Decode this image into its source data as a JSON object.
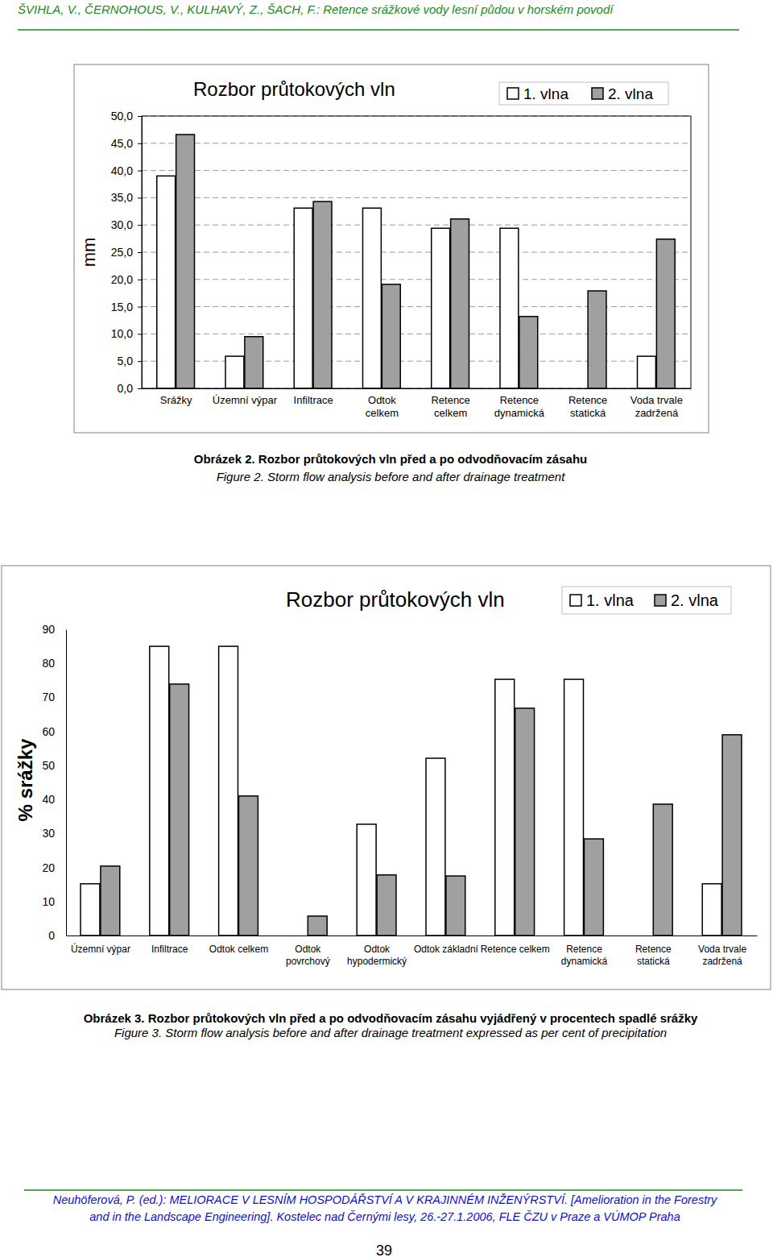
{
  "header": "ŠVIHLA, V., ČERNOHOUS, V., KULHAVÝ, Z., ŠACH, F.: Retence srážkové vody lesní půdou v horském povodí",
  "chart_data": [
    {
      "type": "bar",
      "title": "Rozbor průtokových vln",
      "y_label": "mm",
      "categories": [
        "Srážky",
        "Územní výpar",
        "Infiltrace",
        "Odtok\ncelkem",
        "Retence\ncelkem",
        "Retence\ndynamická",
        "Retence\nstatická",
        "Voda trvale\nzadržená"
      ],
      "series": [
        {
          "name": "1. vlna",
          "color": "#ffffff",
          "values": [
            39.0,
            5.9,
            33.1,
            33.1,
            29.4,
            29.4,
            null,
            5.9
          ]
        },
        {
          "name": "2. vlna",
          "color": "#a0a0a0",
          "values": [
            46.6,
            9.5,
            34.3,
            19.1,
            31.1,
            13.2,
            17.9,
            27.4
          ]
        }
      ],
      "ylim": [
        0,
        50
      ],
      "yticks": [
        {
          "value": 0,
          "label": "0,0"
        },
        {
          "value": 5,
          "label": "5,0"
        },
        {
          "value": 10,
          "label": "10,0"
        },
        {
          "value": 15,
          "label": "15,0"
        },
        {
          "value": 20,
          "label": "20,0"
        },
        {
          "value": 25,
          "label": "25,0"
        },
        {
          "value": 30,
          "label": "30,0"
        },
        {
          "value": 35,
          "label": "35,0"
        },
        {
          "value": 40,
          "label": "40,0"
        },
        {
          "value": 45,
          "label": "45,0"
        },
        {
          "value": 50,
          "label": "50,0"
        }
      ],
      "grid": true,
      "legend": "top-right"
    },
    {
      "type": "bar",
      "title": "Rozbor průtokových vln",
      "y_label": "% srážky",
      "categories": [
        "Územní výpar",
        "Infiltrace",
        "Odtok celkem",
        "Odtok\npovrchový",
        "Odtok\nhypodermický",
        "Odtok základní",
        "Retence celkem",
        "Retence\ndynamická",
        "Retence\nstatická",
        "Voda trvale\nzadržená"
      ],
      "series": [
        {
          "name": "1. vlna",
          "color": "#ffffff",
          "values": [
            15.2,
            85.0,
            85.0,
            null,
            32.7,
            52.1,
            75.3,
            75.3,
            null,
            15.2
          ]
        },
        {
          "name": "2. vlna",
          "color": "#a0a0a0",
          "values": [
            20.4,
            73.9,
            41.0,
            5.7,
            17.8,
            17.5,
            66.8,
            28.4,
            38.6,
            59.0
          ]
        }
      ],
      "ylim": [
        0,
        90
      ],
      "yticks": [
        0,
        10,
        20,
        30,
        40,
        50,
        60,
        70,
        80,
        90
      ],
      "grid": false,
      "legend": "top-right"
    }
  ],
  "captions": [
    {
      "title": "Obrázek 2. Rozbor průtokových vln před a po odvodňovacím zásahu",
      "english": "Figure 2. Storm flow analysis before and after drainage treatment"
    },
    {
      "title": "Obrázek 3. Rozbor průtokových vln před a po odvodňovacím zásahu vyjádřený v procentech spadlé srážky",
      "english": "Figure 3. Storm flow analysis before and after drainage treatment expressed as per cent of precipitation"
    }
  ],
  "footer": [
    "Neuhöferová, P. (ed.): MELIORACE V LESNÍM HOSPODÁŘSTVÍ A V KRAJINNÉM INŽENÝRSTVÍ. [Amelioration in the Forestry",
    "and in the Landscape Engineering]. Kostelec nad Černými lesy, 26.-27.1.2006, FLE ČZU v Praze a VÚMOP Praha"
  ],
  "page_number": 39
}
